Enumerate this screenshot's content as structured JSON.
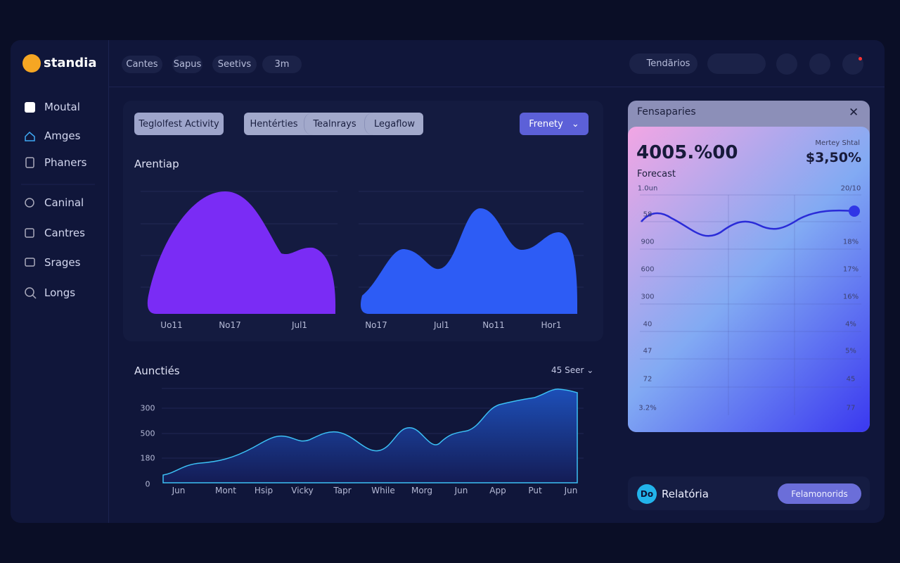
{
  "brand": "standia",
  "nav": [
    "Moutal",
    "Amges",
    "Phaners",
    "Caninal",
    "Cantres",
    "Srages",
    "Longs"
  ],
  "top_tabs": [
    "Cantes",
    "Sapus",
    "Seetivs",
    "3m"
  ],
  "search": "Tendãrios",
  "activity_card": {
    "toggle": "Teglolfest Activity",
    "tabs": [
      "Hentérties",
      "Tealnrays",
      "Legaflow"
    ],
    "dropdown": "Frenety",
    "title": "Arentiap",
    "x_labels_left": [
      "Uo11",
      "No17",
      "Jul1"
    ],
    "x_labels_right": [
      "No17",
      "Jul1",
      "No11",
      "Hor1"
    ]
  },
  "bottom_card": {
    "title": "Aunctiés",
    "selector": "45 Seer",
    "y_labels": [
      "300",
      "500",
      "180",
      "0"
    ],
    "x_labels": [
      "Jun",
      "Mont",
      "Hsip",
      "Vicky",
      "Tapr",
      "While",
      "Morg",
      "Jun",
      "App",
      "Put",
      "Jun"
    ]
  },
  "forecast_panel": {
    "title": "Fensaparies",
    "value": "4005.%00",
    "value_caption": "Mertey Shtal",
    "value_right": "$3,50%",
    "label": "Forecast",
    "left_axis": [
      "1.0un",
      "58",
      "900",
      "600",
      "300",
      "40",
      "47",
      "72",
      "3.2%"
    ],
    "right_axis": [
      "20/10",
      "18%",
      "17%",
      "16%",
      "4%",
      "5%",
      "45",
      "77"
    ]
  },
  "footer": {
    "icon": "Do",
    "label": "Relatória",
    "button": "Felamonorids"
  }
}
